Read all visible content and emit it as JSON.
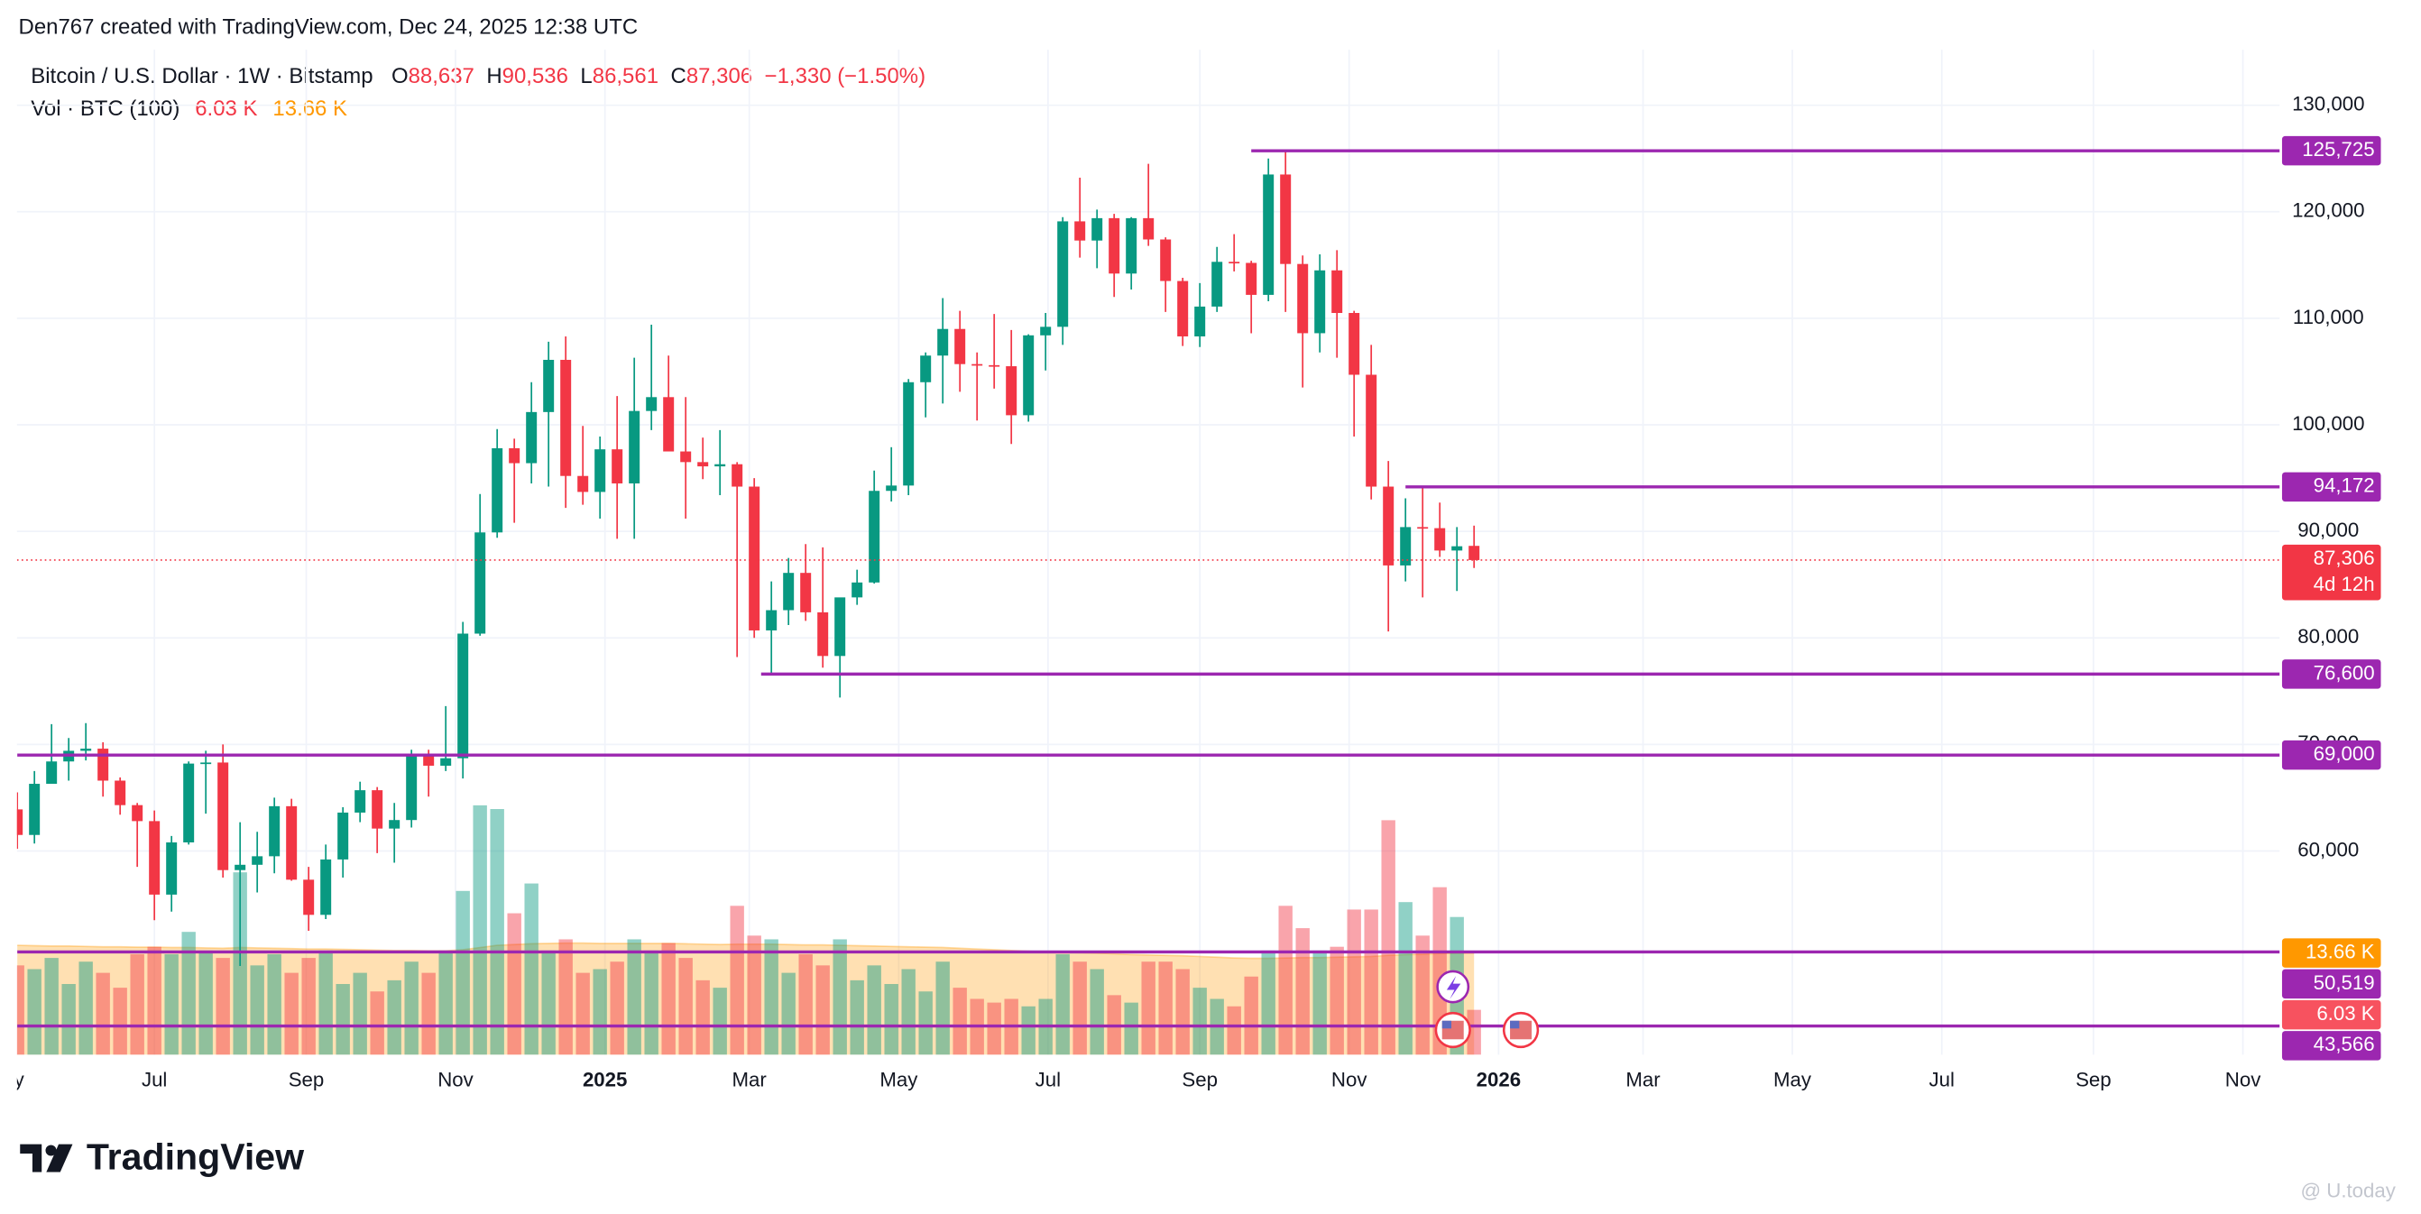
{
  "header": {
    "attribution": "Den767 created with TradingView.com, Dec 24, 2025 12:38 UTC"
  },
  "chart_data": {
    "type": "candlestick",
    "title": "Bitcoin / U.S. Dollar · 1W · Bitstamp",
    "legend": {
      "o_key": "O",
      "open": "88,637",
      "h_key": "H",
      "high": "90,536",
      "l_key": "L",
      "low": "86,561",
      "c_key": "C",
      "close": "87,306",
      "change": "−1,330 (−1.50%)"
    },
    "volume_title": "Vol · BTC (100)",
    "volume_last_label": "6.03 K",
    "volume_ma_label": "13.66 K",
    "last_price_label": "87,306",
    "countdown": "4d 12h",
    "open": [
      63900,
      61500,
      66300,
      68400,
      69400,
      69600,
      66600,
      64300,
      62800,
      55900,
      60800,
      68200,
      68300,
      58200,
      58700,
      59500,
      64200,
      57300,
      54000,
      59200,
      63600,
      65700,
      62100,
      62900,
      69000,
      68000,
      68700,
      80400,
      89900,
      97800,
      96400,
      101200,
      106100,
      95200,
      93700,
      97700,
      94500,
      101300,
      102600,
      97500,
      96500,
      96100,
      96300,
      94200,
      80700,
      82600,
      86100,
      82400,
      78300,
      83800,
      85200,
      93800,
      94300,
      104000,
      106500,
      109000,
      105700,
      105600,
      105500,
      100900,
      108400,
      109200,
      119100,
      117300,
      119400,
      114200,
      119400,
      117400,
      113500,
      108300,
      111100,
      115300,
      115200,
      112200,
      123500,
      115100,
      108600,
      114500,
      110500,
      104700,
      94200,
      86800,
      90400,
      90300,
      88200,
      88637
    ],
    "high": [
      65500,
      67500,
      71900,
      70600,
      72000,
      70200,
      66900,
      64500,
      63800,
      61400,
      68400,
      69400,
      70000,
      62700,
      61800,
      65000,
      64900,
      58500,
      60600,
      64100,
      66500,
      66000,
      64500,
      69500,
      69500,
      73600,
      81500,
      93500,
      99600,
      98700,
      104000,
      107800,
      108300,
      99900,
      98900,
      102700,
      106300,
      109400,
      106500,
      102600,
      98800,
      99500,
      96500,
      95000,
      85300,
      87500,
      88800,
      88500,
      83600,
      86400,
      95700,
      97900,
      104300,
      106800,
      111900,
      110700,
      106800,
      110400,
      108900,
      108500,
      110500,
      119500,
      123200,
      120200,
      119800,
      119500,
      124500,
      117600,
      113800,
      113300,
      116700,
      117900,
      115400,
      125000,
      125725,
      115900,
      116000,
      116400,
      110700,
      107500,
      96600,
      93100,
      94172,
      92700,
      90400,
      90536
    ],
    "low": [
      60200,
      60700,
      66300,
      66600,
      68500,
      65100,
      63400,
      58500,
      53500,
      54300,
      60600,
      63500,
      57500,
      49200,
      56100,
      57900,
      57200,
      52500,
      53600,
      57500,
      62700,
      59800,
      58900,
      62200,
      65100,
      67500,
      66800,
      80200,
      89400,
      90800,
      94500,
      94200,
      92200,
      92500,
      91200,
      89300,
      89300,
      99500,
      97800,
      91200,
      94900,
      93400,
      78200,
      80000,
      76600,
      81200,
      81600,
      77200,
      74400,
      83100,
      85100,
      92800,
      93400,
      100700,
      102000,
      103100,
      100400,
      103400,
      98200,
      100300,
      105100,
      107500,
      115700,
      114700,
      112000,
      112700,
      116800,
      110600,
      107400,
      107300,
      110600,
      114400,
      108600,
      111600,
      110600,
      103500,
      106800,
      106300,
      98900,
      93000,
      80600,
      85300,
      83800,
      87600,
      84400,
      86561
    ],
    "close": [
      61500,
      66300,
      68400,
      69400,
      69600,
      66600,
      64300,
      62800,
      55900,
      60800,
      68200,
      68300,
      58200,
      58700,
      59500,
      64200,
      57300,
      54000,
      59200,
      63600,
      65700,
      62100,
      62900,
      69000,
      68000,
      68700,
      80400,
      89900,
      97800,
      96400,
      101200,
      106100,
      95200,
      93700,
      97700,
      94500,
      101300,
      102600,
      97500,
      96500,
      96100,
      96300,
      94200,
      80700,
      82600,
      86100,
      82400,
      78300,
      83800,
      85200,
      93800,
      94300,
      104000,
      106500,
      109000,
      105700,
      105600,
      105500,
      100900,
      108400,
      109200,
      119100,
      117300,
      119400,
      114200,
      119400,
      117400,
      113500,
      108300,
      111100,
      115300,
      115200,
      112200,
      123500,
      115100,
      108600,
      114500,
      110500,
      104700,
      94200,
      86800,
      90400,
      90300,
      88200,
      88600,
      87306
    ],
    "volume": [
      12000,
      11500,
      13000,
      9500,
      12500,
      11000,
      9000,
      13500,
      14500,
      13500,
      16500,
      14000,
      13000,
      24500,
      12000,
      13500,
      11000,
      13000,
      14000,
      9500,
      11000,
      8500,
      10000,
      12500,
      11000,
      14000,
      22000,
      33500,
      33000,
      19000,
      23000,
      14000,
      15500,
      11000,
      11500,
      12500,
      15500,
      14000,
      15000,
      13000,
      10000,
      9000,
      20000,
      16000,
      15500,
      11000,
      13500,
      12000,
      15500,
      10000,
      12000,
      9500,
      11500,
      8500,
      12500,
      9000,
      7500,
      7000,
      7500,
      6500,
      7500,
      13500,
      12500,
      11500,
      8000,
      7000,
      12500,
      12500,
      11500,
      9000,
      7500,
      6500,
      10500,
      14000,
      20000,
      17000,
      14000,
      14500,
      19500,
      19500,
      31500,
      20500,
      16000,
      22500,
      18500,
      6030
    ],
    "volume_ma": [
      14700,
      14650,
      14600,
      14600,
      14550,
      14500,
      14500,
      14450,
      14450,
      14400,
      14400,
      14350,
      14300,
      14400,
      14350,
      14300,
      14250,
      14200,
      14200,
      14150,
      14100,
      14050,
      14000,
      14000,
      13950,
      13950,
      14100,
      14400,
      14700,
      14800,
      14900,
      14950,
      15000,
      15000,
      14950,
      14950,
      14950,
      14950,
      14950,
      14900,
      14850,
      14800,
      14850,
      14850,
      14850,
      14800,
      14750,
      14750,
      14700,
      14650,
      14600,
      14550,
      14500,
      14450,
      14400,
      14300,
      14200,
      14100,
      14000,
      13900,
      13800,
      13750,
      13700,
      13650,
      13550,
      13450,
      13400,
      13350,
      13300,
      13200,
      13100,
      13000,
      12950,
      12950,
      13000,
      13050,
      13050,
      13100,
      13150,
      13200,
      13350,
      13450,
      13500,
      13600,
      13650,
      13660
    ],
    "up_color": "#089981",
    "down_color": "#f23645",
    "ma_color": "#ff9800",
    "level_color": "#9c27b0",
    "volume_label_color": "#f7525f",
    "levels": [
      {
        "value": 125725,
        "label": "125,725",
        "from": 72
      },
      {
        "value": 94172,
        "label": "94,172",
        "from": 81
      },
      {
        "value": 76600,
        "label": "76,600",
        "from": 43.4
      },
      {
        "value": 69000,
        "label": "69,000",
        "from": 0
      },
      {
        "value": 50519,
        "label": "50,519",
        "from": 0
      },
      {
        "value": 43566,
        "label": "43,566",
        "from": 0
      }
    ],
    "xlim": [
      0,
      132
    ],
    "xticks": [
      {
        "value": -0.71,
        "label": "May"
      },
      {
        "value": 8,
        "label": "Jul"
      },
      {
        "value": 16.86,
        "label": "Sep"
      },
      {
        "value": 25.57,
        "label": "Nov"
      },
      {
        "value": 34.29,
        "label": "2025",
        "bold": true
      },
      {
        "value": 42.71,
        "label": "Mar"
      },
      {
        "value": 51.43,
        "label": "May"
      },
      {
        "value": 60.14,
        "label": "Jul"
      },
      {
        "value": 69,
        "label": "Sep"
      },
      {
        "value": 77.71,
        "label": "Nov"
      },
      {
        "value": 86.43,
        "label": "2026",
        "bold": true
      },
      {
        "value": 94.86,
        "label": "Mar"
      },
      {
        "value": 103.57,
        "label": "May"
      },
      {
        "value": 112.29,
        "label": "Jul"
      },
      {
        "value": 121.14,
        "label": "Sep"
      },
      {
        "value": 129.86,
        "label": "Nov"
      }
    ],
    "ylim": [
      40870,
      135217
    ],
    "yticks": [
      {
        "value": 60000,
        "label": "60,000"
      },
      {
        "value": 70000,
        "label": "70,000"
      },
      {
        "value": 80000,
        "label": "80,000"
      },
      {
        "value": 90000,
        "label": "90,000"
      },
      {
        "value": 100000,
        "label": "100,000"
      },
      {
        "value": 110000,
        "label": "110,000"
      },
      {
        "value": 120000,
        "label": "120,000"
      },
      {
        "value": 130000,
        "label": "130,000"
      }
    ],
    "volume_lim": [
      0,
      135000
    ],
    "grid": true
  },
  "footer": {
    "logo": "TradingView",
    "watermark": "@ U.today"
  }
}
